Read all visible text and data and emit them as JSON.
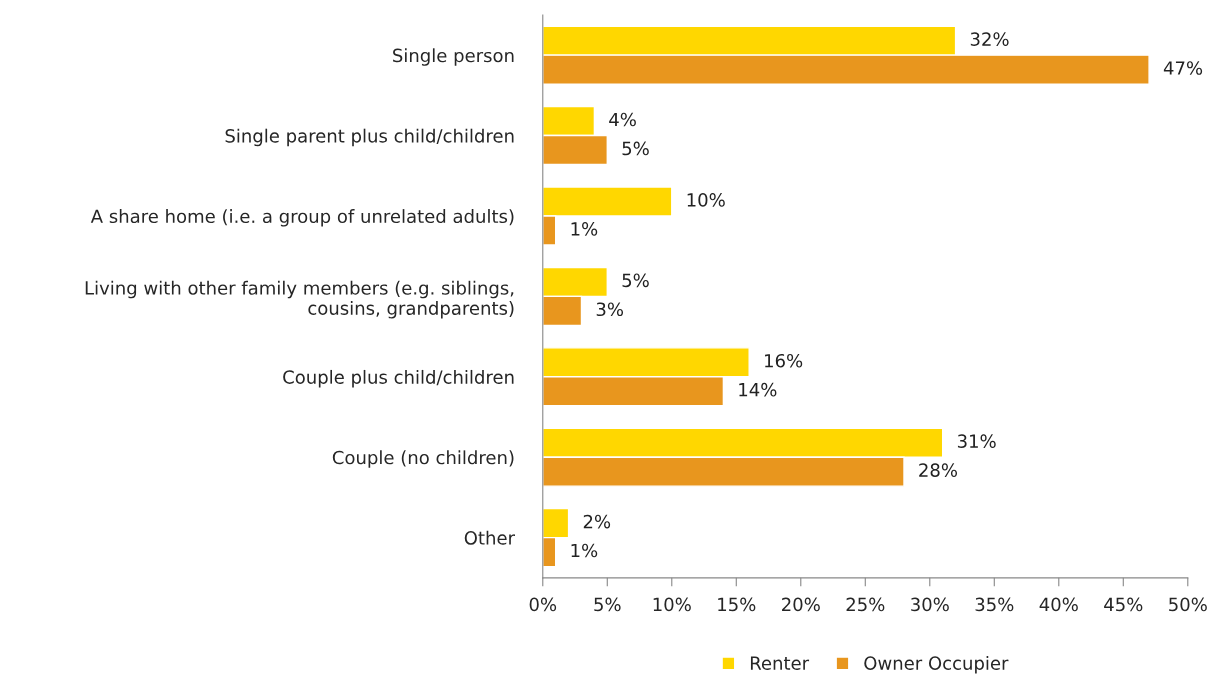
{
  "chart_data": {
    "type": "bar",
    "orientation": "horizontal",
    "categories": [
      "Single person",
      "Single parent plus child/children",
      "A share home (i.e. a group of unrelated adults)",
      "Living with other family members (e.g. siblings,\ncousins, grandparents)",
      "Couple plus child/children",
      "Couple (no children)",
      "Other"
    ],
    "series": [
      {
        "name": "Renter",
        "color": "#ffd700",
        "values": [
          32,
          4,
          10,
          5,
          16,
          31,
          2
        ],
        "value_labels": [
          "32%",
          "4%",
          "10%",
          "5%",
          "16%",
          "31%",
          "2%"
        ]
      },
      {
        "name": "Owner Occupier",
        "color": "#e8961e",
        "values": [
          47,
          5,
          1,
          3,
          14,
          28,
          1
        ],
        "value_labels": [
          "47%",
          "5%",
          "1%",
          "3%",
          "14%",
          "28%",
          "1%"
        ]
      }
    ],
    "xlim": [
      0,
      50
    ],
    "xticks": [
      {
        "value": 0,
        "label": "0%"
      },
      {
        "value": 5,
        "label": "5%"
      },
      {
        "value": 10,
        "label": "10%"
      },
      {
        "value": 15,
        "label": "15%"
      },
      {
        "value": 20,
        "label": "20%"
      },
      {
        "value": 25,
        "label": "25%"
      },
      {
        "value": 30,
        "label": "30%"
      },
      {
        "value": 35,
        "label": "35%"
      },
      {
        "value": 40,
        "label": "40%"
      },
      {
        "value": 45,
        "label": "45%"
      },
      {
        "value": 50,
        "label": "50%"
      }
    ],
    "grid": false,
    "legend": "bottom"
  }
}
